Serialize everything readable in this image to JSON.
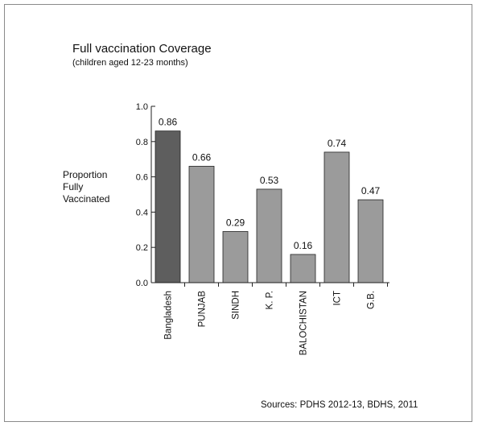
{
  "chart_data": {
    "type": "bar",
    "title": "Full vaccination Coverage",
    "subtitle": "(children aged 12-23 months)",
    "ylabel": [
      "Proportion",
      "Fully",
      "Vaccinated"
    ],
    "xlabel": "",
    "categories": [
      "Bangladesh",
      "PUNJAB",
      "SINDH",
      "K. P.",
      "BALOCHISTAN",
      "ICT",
      "G.B."
    ],
    "values": [
      0.86,
      0.66,
      0.29,
      0.53,
      0.16,
      0.74,
      0.47
    ],
    "value_labels": [
      "0.86",
      "0.66",
      "0.29",
      "0.53",
      "0.16",
      "0.74",
      "0.47"
    ],
    "ylim": [
      0,
      1.0
    ],
    "yticks": [
      "0.0",
      "0.2",
      "0.4",
      "0.6",
      "0.8",
      "1.0"
    ],
    "ytick_values": [
      0,
      0.2,
      0.4,
      0.6,
      0.8,
      1.0
    ],
    "grid": false,
    "bar_colors": [
      "#5e5e5e",
      "#9b9b9b",
      "#9b9b9b",
      "#9b9b9b",
      "#9b9b9b",
      "#9b9b9b",
      "#9b9b9b"
    ],
    "bar_stroke": "#222222"
  },
  "source": "Sources:  PDHS 2012-13, BDHS, 2011"
}
